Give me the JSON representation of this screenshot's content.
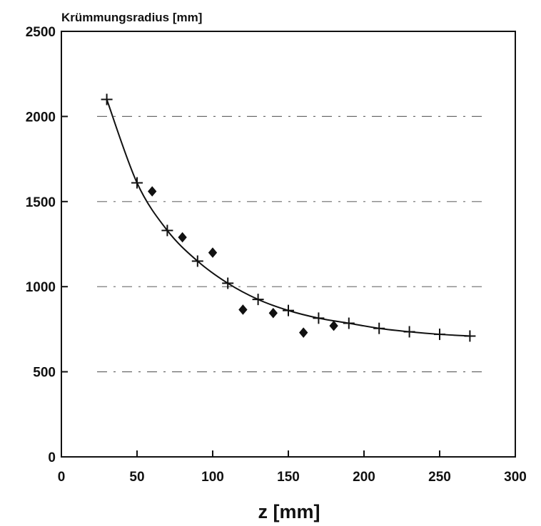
{
  "chart_data": {
    "type": "scatter",
    "title": "",
    "xlabel": "z [mm]",
    "ylabel": "Krümmungsradius [mm]",
    "xlim": [
      0,
      300
    ],
    "ylim": [
      0,
      2500
    ],
    "xticks": [
      "0",
      "50",
      "100",
      "150",
      "200",
      "250",
      "300"
    ],
    "yticks": [
      "0",
      "500",
      "1000",
      "1500",
      "2000",
      "2500"
    ],
    "grid": "horizontal dashed",
    "colors": {
      "ink": "#111111",
      "grid": "#6b6b6b",
      "background": "#ffffff"
    },
    "series": [
      {
        "marker": "plus",
        "connected_by_curve": true,
        "x": [
          30,
          50,
          70,
          90,
          110,
          130,
          150,
          170,
          190,
          210,
          230,
          250,
          270
        ],
        "y": [
          2100,
          1610,
          1330,
          1150,
          1020,
          925,
          860,
          815,
          785,
          755,
          735,
          720,
          710
        ]
      },
      {
        "marker": "diamond",
        "connected_by_curve": false,
        "x": [
          60,
          80,
          100,
          120,
          140,
          160,
          180
        ],
        "y": [
          1560,
          1290,
          1200,
          865,
          845,
          730,
          770
        ]
      }
    ]
  }
}
